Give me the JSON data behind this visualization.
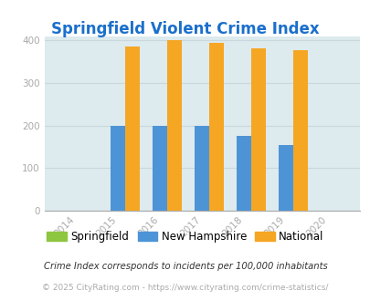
{
  "title": "Springfield Violent Crime Index",
  "title_color": "#1a6fcc",
  "years": [
    2014,
    2015,
    2016,
    2017,
    2018,
    2019,
    2020
  ],
  "springfield": [
    0,
    0,
    0,
    0,
    0,
    0,
    0
  ],
  "new_hampshire": [
    0,
    200,
    200,
    200,
    175,
    155,
    0
  ],
  "national": [
    0,
    385,
    400,
    395,
    382,
    378,
    0
  ],
  "springfield_color": "#8dc63f",
  "nh_color": "#4d94d6",
  "national_color": "#f5a623",
  "bg_color": "#ddeaee",
  "fig_bg_color": "#ffffff",
  "ylim": [
    0,
    410
  ],
  "yticks": [
    0,
    100,
    200,
    300,
    400
  ],
  "bar_width": 0.35,
  "legend_labels": [
    "Springfield",
    "New Hampshire",
    "National"
  ],
  "footnote1": "Crime Index corresponds to incidents per 100,000 inhabitants",
  "footnote2": "© 2025 CityRating.com - https://www.cityrating.com/crime-statistics/",
  "footnote1_color": "#333333",
  "footnote2_color": "#aaaaaa",
  "grid_color": "#c8d8dc",
  "tick_color": "#aaaaaa",
  "spine_color": "#aaaaaa"
}
